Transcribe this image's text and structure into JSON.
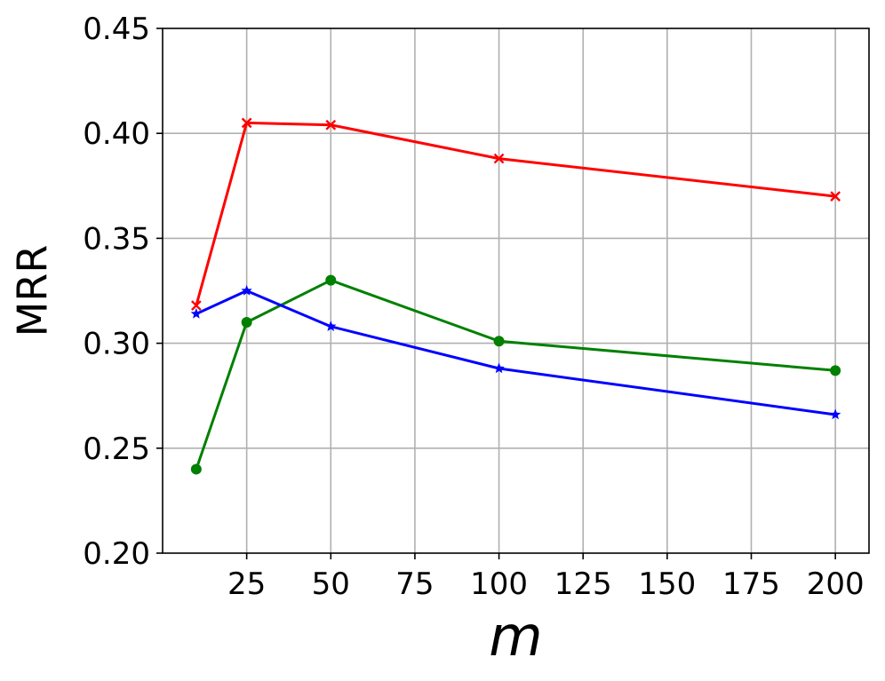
{
  "chart_data": {
    "type": "line",
    "xlabel": "m",
    "ylabel": "MRR",
    "xlim": [
      0,
      210
    ],
    "ylim": [
      0.2,
      0.45
    ],
    "x_ticks": [
      25,
      50,
      75,
      100,
      125,
      150,
      175,
      200
    ],
    "x_tick_labels": [
      "25",
      "50",
      "75",
      "100",
      "125",
      "150",
      "175",
      "200"
    ],
    "y_ticks": [
      0.2,
      0.25,
      0.3,
      0.35,
      0.4,
      0.45
    ],
    "y_tick_labels": [
      "0.20",
      "0.25",
      "0.30",
      "0.35",
      "0.40",
      "0.45"
    ],
    "grid": true,
    "x": [
      10,
      25,
      50,
      100,
      200
    ],
    "series": [
      {
        "color": "#ff0000",
        "marker": "x",
        "values": [
          0.318,
          0.405,
          0.404,
          0.388,
          0.37
        ]
      },
      {
        "color": "#008000",
        "marker": "o",
        "values": [
          0.24,
          0.31,
          0.33,
          0.301,
          0.287
        ]
      },
      {
        "color": "#0000ff",
        "marker": "*",
        "values": [
          0.314,
          0.325,
          0.308,
          0.288,
          0.266
        ]
      }
    ]
  }
}
